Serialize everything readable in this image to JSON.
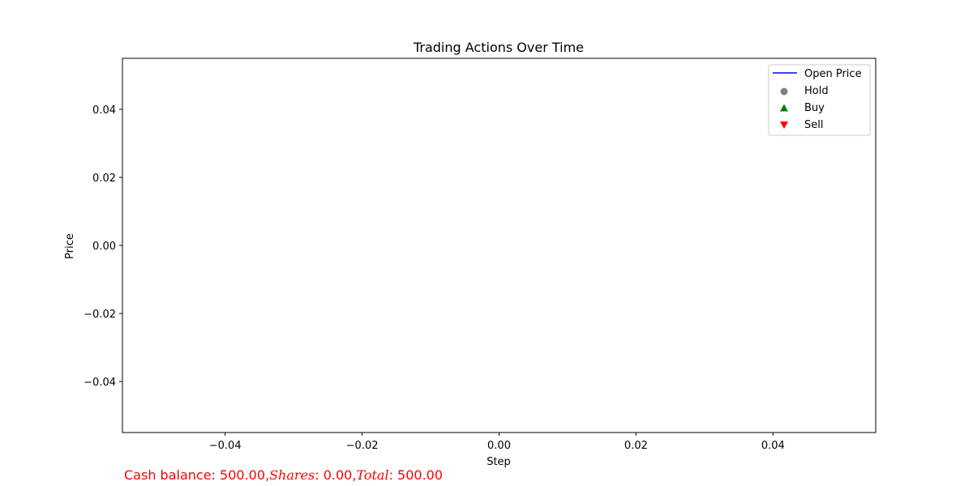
{
  "chart_data": {
    "type": "line",
    "title": "Trading Actions Over Time",
    "xlabel": "Step",
    "ylabel": "Price",
    "xlim": [
      -0.055,
      0.055
    ],
    "ylim": [
      -0.055,
      0.055
    ],
    "xticks": [
      -0.04,
      -0.02,
      0.0,
      0.02,
      0.04
    ],
    "xtick_labels": [
      "−0.04",
      "−0.02",
      "0.00",
      "0.02",
      "0.04"
    ],
    "yticks": [
      0.04,
      0.02,
      0.0,
      -0.02,
      -0.04
    ],
    "ytick_labels": [
      "0.04",
      "0.02",
      "0.00",
      "−0.02",
      "−0.04"
    ],
    "grid": false,
    "legend_position": "top-right",
    "series": [
      {
        "name": "Open Price",
        "marker": "line",
        "color": "#0000ff",
        "x": [],
        "y": []
      },
      {
        "name": "Hold",
        "marker": "circle",
        "color": "#808080",
        "x": [],
        "y": []
      },
      {
        "name": "Buy",
        "marker": "triangle-up",
        "color": "#008000",
        "x": [],
        "y": []
      },
      {
        "name": "Sell",
        "marker": "triangle-down",
        "color": "#ff0000",
        "x": [],
        "y": []
      }
    ]
  },
  "footer": {
    "color": "#ff0000",
    "cash_part": "Cash balance: 500.00,",
    "shares_word": "Shares",
    "shares_value": ": 0.00,",
    "total_word": "Total",
    "total_value": ": 500.00"
  }
}
